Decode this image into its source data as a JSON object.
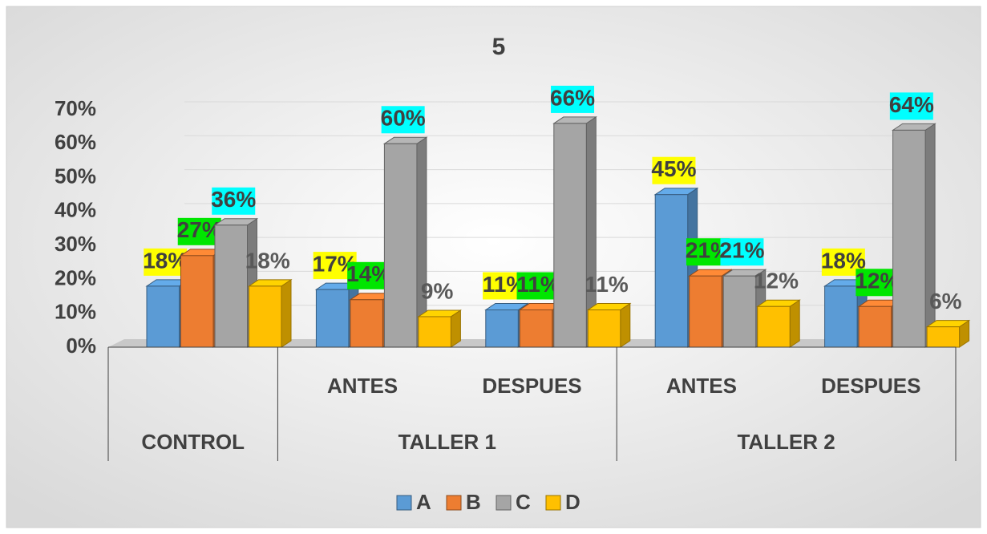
{
  "chart_data": {
    "type": "bar3d",
    "title": "5",
    "categories": [
      null,
      "ANTES",
      "DESPUES",
      "ANTES",
      "DESPUES"
    ],
    "groups": [
      {
        "label": "CONTROL",
        "span": 1
      },
      {
        "label": "TALLER 1",
        "span": 2
      },
      {
        "label": "TALLER 2",
        "span": 2
      }
    ],
    "series": [
      {
        "name": "A",
        "color": "#5b9bd5",
        "label_background": "#ffff00",
        "values": [
          18,
          17,
          11,
          45,
          18
        ],
        "value_labels": [
          "18%",
          "17%",
          "11%",
          "45%",
          "18%"
        ]
      },
      {
        "name": "B",
        "color": "#ed7d31",
        "label_background": "#00e600",
        "values": [
          27,
          14,
          11,
          21,
          12
        ],
        "value_labels": [
          "27%",
          "14%",
          "11%",
          "21%",
          "12%"
        ]
      },
      {
        "name": "C",
        "color": "#a5a5a5",
        "label_background": "#00ffff",
        "values": [
          36,
          60,
          66,
          21,
          64
        ],
        "value_labels": [
          "36%",
          "60%",
          "66%",
          "21%",
          "64%"
        ]
      },
      {
        "name": "D",
        "color": "#ffc000",
        "values": [
          18,
          9,
          11,
          12,
          6
        ],
        "value_labels": [
          "18%",
          "9%",
          "11%",
          "12%",
          "6%"
        ]
      }
    ],
    "ylim": [
      0,
      70
    ],
    "yticks": [
      {
        "value": 0,
        "label": "0%"
      },
      {
        "value": 10,
        "label": "10%"
      },
      {
        "value": 20,
        "label": "20%"
      },
      {
        "value": 30,
        "label": "30%"
      },
      {
        "value": 40,
        "label": "40%"
      },
      {
        "value": 50,
        "label": "50%"
      },
      {
        "value": 60,
        "label": "60%"
      },
      {
        "value": 70,
        "label": "70%"
      }
    ],
    "grid": true,
    "legend": "bottom"
  }
}
